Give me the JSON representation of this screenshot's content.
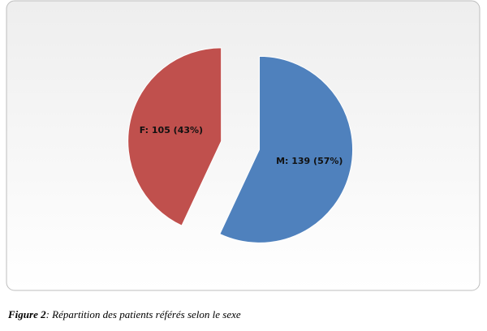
{
  "chart_data": {
    "type": "pie",
    "categories": [
      "F",
      "M"
    ],
    "values": [
      105,
      139
    ],
    "value_labels": [
      "F: 105 (43%)",
      "M: 139 (57%)"
    ],
    "colors": [
      "#c0504d",
      "#4f81bd"
    ]
  },
  "caption": {
    "label": "Figure 2",
    "text": ": Répartition des patients référés selon le sexe"
  }
}
